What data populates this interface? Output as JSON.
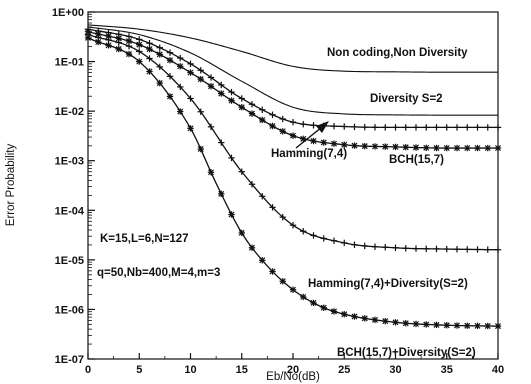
{
  "chart_data": {
    "type": "line",
    "title": "",
    "xlabel": "Eb/No(dB)",
    "ylabel": "Error Probability",
    "xlim": [
      0,
      40
    ],
    "ylim": [
      1e-07,
      1
    ],
    "yscale": "log",
    "grid": false,
    "x_ticks": [
      "0",
      "5",
      "10",
      "15",
      "20",
      "25",
      "30",
      "35",
      "40"
    ],
    "y_ticks": [
      "1E+00",
      "1E-01",
      "1E-02",
      "1E-03",
      "1E-04",
      "1E-05",
      "1E-06",
      "1E-07"
    ],
    "series": [
      {
        "name": "Non coding,Non Diversity",
        "marker": "none",
        "x": [
          0,
          5,
          10,
          15,
          20,
          25,
          30,
          35,
          40
        ],
        "y": [
          0.55,
          0.45,
          0.3,
          0.16,
          0.08,
          0.064,
          0.062,
          0.061,
          0.061
        ]
      },
      {
        "name": "Diversity S=2",
        "marker": "none",
        "x": [
          0,
          5,
          10,
          15,
          20,
          25,
          30,
          35,
          40
        ],
        "y": [
          0.5,
          0.35,
          0.15,
          0.04,
          0.012,
          0.0088,
          0.0084,
          0.0083,
          0.0083
        ]
      },
      {
        "name": "Hamming(7,4)",
        "marker": "plus",
        "x": [
          0,
          5,
          10,
          15,
          20,
          25,
          30,
          35,
          40
        ],
        "y": [
          0.45,
          0.28,
          0.09,
          0.018,
          0.006,
          0.0049,
          0.0047,
          0.0047,
          0.0047
        ]
      },
      {
        "name": "BCH(15,7)",
        "marker": "star",
        "x": [
          0,
          5,
          10,
          15,
          20,
          25,
          30,
          35,
          40
        ],
        "y": [
          0.4,
          0.22,
          0.06,
          0.012,
          0.0032,
          0.0021,
          0.0019,
          0.0018,
          0.0018
        ]
      },
      {
        "name": "Hamming(7,4)+Diversity(S=2)",
        "marker": "plus",
        "x": [
          0,
          5,
          10,
          15,
          20,
          25,
          30,
          35,
          40
        ],
        "y": [
          0.35,
          0.16,
          0.018,
          0.0006,
          5e-05,
          2.2e-05,
          1.75e-05,
          1.65e-05,
          1.6e-05
        ]
      },
      {
        "name": "BCH(15,7)+Diversity(S=2)",
        "marker": "star",
        "x": [
          0,
          5,
          10,
          12.5,
          15,
          17.5,
          20,
          22.5,
          25,
          30,
          35,
          40
        ],
        "y": [
          0.3,
          0.1,
          0.0045,
          0.00035,
          3.5e-05,
          7.5e-06,
          2.5e-06,
          1.2e-06,
          8e-07,
          5.5e-07,
          4.8e-07,
          4.6e-07
        ]
      }
    ],
    "annotations": [
      "Non coding,Non Diversity",
      "Diversity S=2",
      "Hamming(7,4)",
      "BCH(15,7)",
      "K=15,L=6,N=127",
      "q=50,Nb=400,M=4,m=3",
      "Hamming(7,4)+Diversity(S=2)",
      "BCH(15,7)+Diversity(S=2)"
    ]
  }
}
